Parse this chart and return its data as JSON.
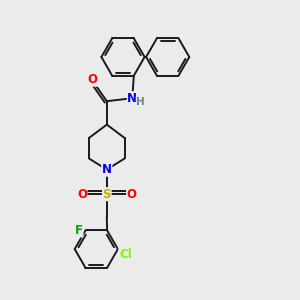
{
  "bg_color": "#ebebeb",
  "bond_color": "#1a1a1a",
  "bond_width": 1.4,
  "atom_colors": {
    "N": "#0000ff",
    "O": "#ff0000",
    "S": "#ccaa00",
    "F": "#00aa00",
    "Cl": "#7cfc00",
    "H": "#708090"
  },
  "font_size": 8.5,
  "fig_width": 3.0,
  "fig_height": 3.0,
  "dpi": 100
}
